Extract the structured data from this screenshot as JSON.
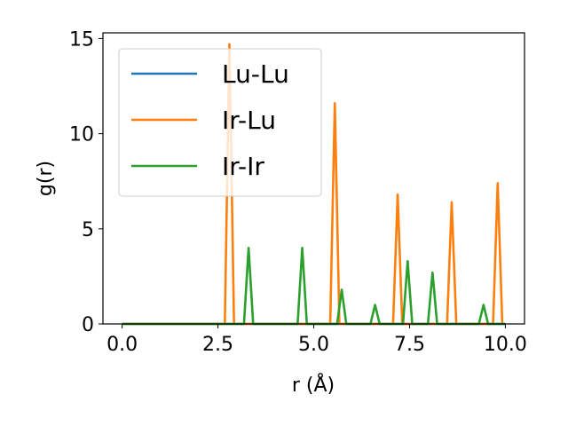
{
  "chart_data": {
    "type": "line",
    "title": "",
    "xlabel": "r (Å)",
    "ylabel": "g(r)",
    "xlim": [
      -0.5,
      10.5
    ],
    "ylim": [
      0,
      15.3
    ],
    "xticks": [
      0.0,
      2.5,
      5.0,
      7.5,
      10.0
    ],
    "xtick_labels": [
      "0.0",
      "2.5",
      "5.0",
      "7.5",
      "10.0"
    ],
    "yticks": [
      0,
      5,
      10,
      15
    ],
    "ytick_labels": [
      "0",
      "5",
      "10",
      "15"
    ],
    "grid": false,
    "legend_position": "upper-left",
    "series": [
      {
        "name": "Lu-Lu",
        "color": "#1f77b4",
        "x": [
          0,
          10
        ],
        "y": [
          0,
          0
        ]
      },
      {
        "name": "Ir-Lu",
        "color": "#ff7f0e",
        "x": [
          0,
          2.68,
          2.8,
          2.92,
          5.43,
          5.55,
          5.67,
          7.07,
          7.19,
          7.31,
          8.48,
          8.6,
          8.72,
          9.68,
          9.8,
          9.92
        ],
        "y": [
          0,
          0,
          14.7,
          0,
          0,
          11.6,
          0,
          0,
          6.8,
          0,
          0,
          6.4,
          0,
          0,
          7.4,
          0
        ]
      },
      {
        "name": "Ir-Ir",
        "color": "#2ca02c",
        "x": [
          0,
          3.18,
          3.3,
          3.42,
          4.58,
          4.7,
          4.82,
          5.61,
          5.73,
          5.85,
          6.48,
          6.6,
          6.72,
          7.33,
          7.45,
          7.57,
          7.98,
          8.1,
          8.22,
          9.31,
          9.43,
          9.55,
          10
        ],
        "y": [
          0,
          0,
          4.0,
          0,
          0,
          4.0,
          0,
          0,
          1.8,
          0,
          0,
          1.0,
          0,
          0,
          3.3,
          0,
          0,
          2.7,
          0,
          0,
          1.0,
          0,
          0
        ]
      }
    ]
  }
}
